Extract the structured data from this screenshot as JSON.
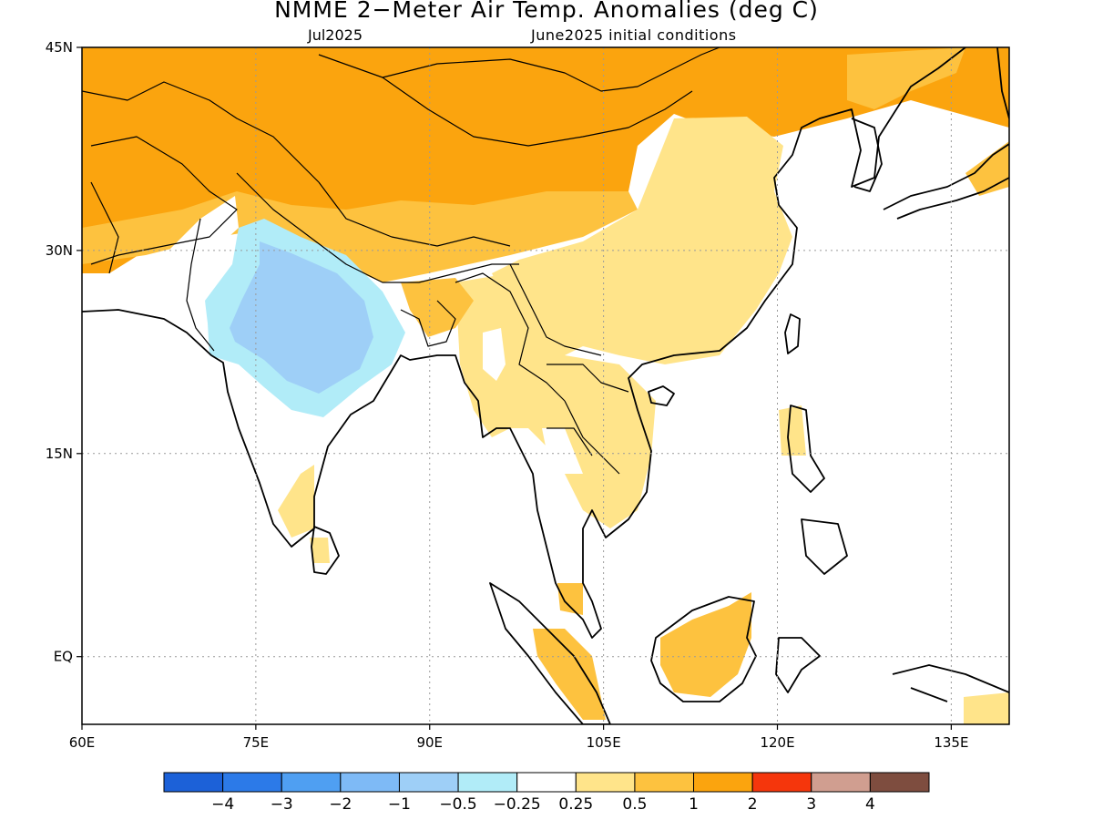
{
  "header": {
    "title": "NMME 2−Meter Air Temp. Anomalies (deg C)",
    "subtitle_left": "Jul2025",
    "subtitle_right": "June2025 initial conditions"
  },
  "map": {
    "lon_range": [
      60,
      140
    ],
    "lat_range": [
      -5,
      45
    ],
    "lat_ticks": [
      {
        "value": 45,
        "label": "45N"
      },
      {
        "value": 30,
        "label": "30N"
      },
      {
        "value": 15,
        "label": "15N"
      },
      {
        "value": 0,
        "label": "EQ"
      }
    ],
    "lon_ticks": [
      {
        "value": 60,
        "label": "60E"
      },
      {
        "value": 75,
        "label": "75E"
      },
      {
        "value": 90,
        "label": "90E"
      },
      {
        "value": 105,
        "label": "105E"
      },
      {
        "value": 120,
        "label": "120E"
      },
      {
        "value": 135,
        "label": "135E"
      }
    ],
    "gridlines": "dotted"
  },
  "colorbar": {
    "colors": [
      "#1c61d8",
      "#2c7ae8",
      "#4f9ff2",
      "#7ebaf6",
      "#9ecff7",
      "#b1ecf8",
      "#ffffff",
      "#ffe48a",
      "#fdc23f",
      "#fba40e",
      "#f5360c",
      "#d09e90",
      "#7e4d3f"
    ],
    "labels": [
      "−4",
      "−3",
      "−2",
      "−1",
      "−0.5",
      "−0.25",
      "0.25",
      "0.5",
      "1",
      "2",
      "3",
      "4"
    ]
  }
}
